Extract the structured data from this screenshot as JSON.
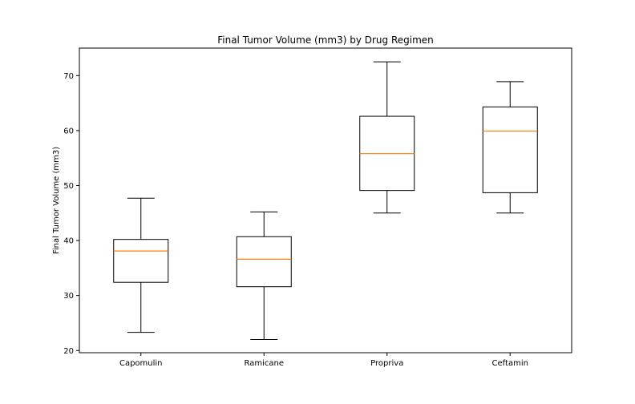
{
  "chart_data": {
    "type": "box",
    "title": "Final Tumor Volume (mm3) by Drug Regimen",
    "xlabel": "",
    "ylabel": "Final Tumor Volume (mm3)",
    "ylim": [
      19.6,
      75.0
    ],
    "yticks": [
      20,
      30,
      40,
      50,
      60,
      70
    ],
    "categories": [
      "Capomulin",
      "Ramicane",
      "Propriva",
      "Ceftamin"
    ],
    "boxes": [
      {
        "whisker_low": 23.3,
        "q1": 32.4,
        "median": 38.1,
        "q3": 40.2,
        "whisker_high": 47.7
      },
      {
        "whisker_low": 22.0,
        "q1": 31.6,
        "median": 36.6,
        "q3": 40.7,
        "whisker_high": 45.2
      },
      {
        "whisker_low": 45.0,
        "q1": 49.1,
        "median": 55.8,
        "q3": 62.6,
        "whisker_high": 72.5
      },
      {
        "whisker_low": 45.0,
        "q1": 48.7,
        "median": 59.9,
        "q3": 64.3,
        "whisker_high": 68.9
      }
    ],
    "grid": false,
    "colors": {
      "box": "#000000",
      "median": "#ff7f0e",
      "axes": "#000000"
    }
  }
}
